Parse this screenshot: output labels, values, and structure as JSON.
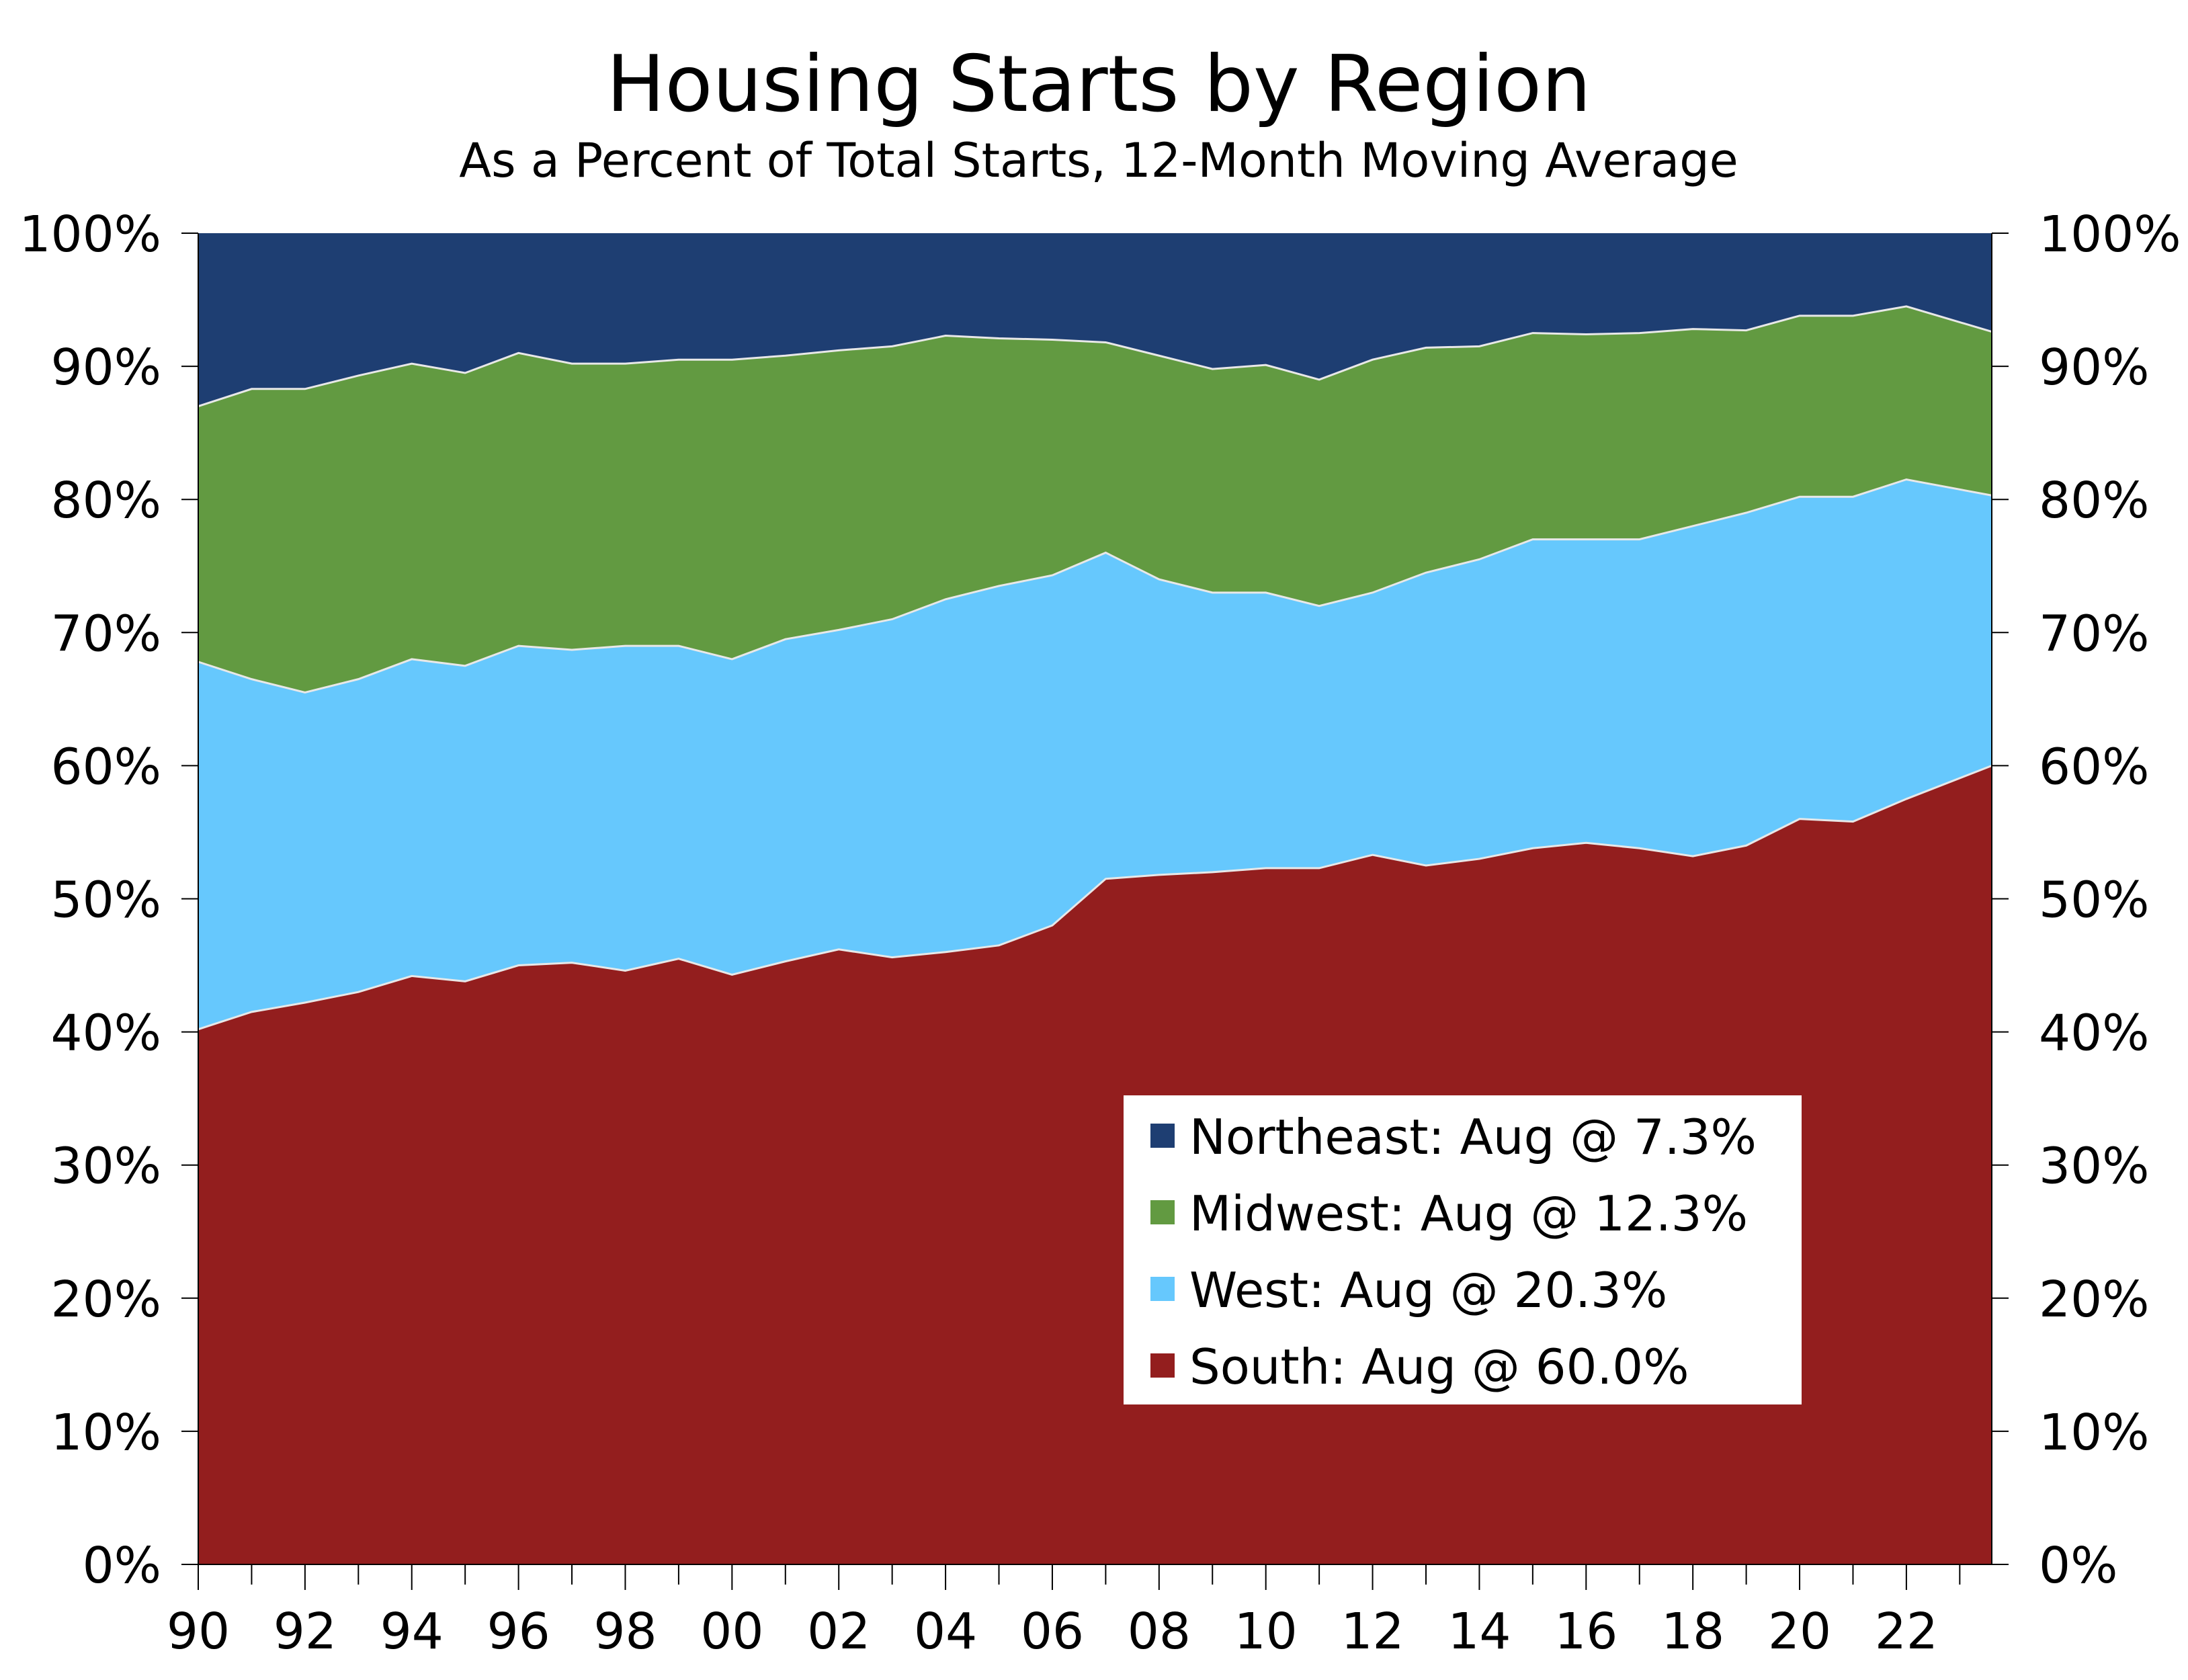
{
  "chart_data": {
    "type": "area",
    "stacked": true,
    "title": "Housing Starts by Region",
    "subtitle": "As a Percent of Total Starts, 12-Month Moving Average",
    "xlabel": "",
    "ylabel": "",
    "ylim": [
      0,
      100
    ],
    "xlim": [
      1990,
      2023.6
    ],
    "y_ticks": [
      "0%",
      "10%",
      "20%",
      "30%",
      "40%",
      "50%",
      "60%",
      "70%",
      "80%",
      "90%",
      "100%"
    ],
    "x_ticks": [
      "90",
      "92",
      "94",
      "96",
      "98",
      "00",
      "02",
      "04",
      "06",
      "08",
      "10",
      "12",
      "14",
      "16",
      "18",
      "20",
      "22"
    ],
    "x": [
      1990,
      1991,
      1992,
      1993,
      1994,
      1995,
      1996,
      1997,
      1998,
      1999,
      2000,
      2001,
      2002,
      2003,
      2004,
      2005,
      2006,
      2007,
      2008,
      2009,
      2010,
      2011,
      2012,
      2013,
      2014,
      2015,
      2016,
      2017,
      2018,
      2019,
      2020,
      2021,
      2022,
      2023.6
    ],
    "series": [
      {
        "name": "South",
        "legend": "South: Aug @ 60.0%",
        "color": "#931e1e",
        "values": [
          40.2,
          41.5,
          42.2,
          43,
          44.2,
          43.8,
          45,
          45.2,
          44.6,
          45.5,
          44.3,
          45.3,
          46.2,
          45.6,
          46,
          46.5,
          48,
          51.5,
          51.8,
          52,
          52.3,
          52.3,
          53.3,
          52.5,
          53,
          53.8,
          54.2,
          53.8,
          53.2,
          54,
          56,
          55.8,
          57.5,
          60.0
        ]
      },
      {
        "name": "West",
        "legend": "West: Aug @ 20.3%",
        "color": "#66c8fd",
        "values": [
          27.6,
          25.0,
          23.3,
          23.5,
          23.8,
          23.7,
          24.0,
          23.5,
          24.4,
          23.5,
          23.7,
          24.2,
          24.0,
          25.4,
          26.5,
          27.0,
          26.3,
          24.5,
          22.2,
          21.0,
          20.7,
          19.7,
          19.7,
          22.0,
          22.5,
          23.2,
          22.8,
          23.2,
          24.8,
          25.0,
          24.2,
          24.4,
          24.0,
          20.3
        ]
      },
      {
        "name": "Midwest",
        "legend": "Midwest: Aug @ 12.3%",
        "color": "#629a41",
        "values": [
          19.2,
          21.8,
          22.8,
          22.8,
          22.2,
          22.0,
          22.0,
          21.5,
          21.2,
          21.5,
          22.5,
          21.3,
          21.0,
          20.5,
          19.8,
          18.6,
          17.7,
          15.8,
          16.8,
          16.8,
          17.1,
          17.0,
          17.5,
          16.9,
          16.0,
          15.5,
          15.4,
          15.5,
          14.8,
          13.7,
          13.6,
          13.6,
          13.0,
          12.3
        ]
      },
      {
        "name": "Northeast",
        "legend": "Northeast: Aug @ 7.3%",
        "color": "#1e3e72",
        "values": [
          13.0,
          11.7,
          11.7,
          10.7,
          9.8,
          10.5,
          9.0,
          9.8,
          9.8,
          9.5,
          9.5,
          9.2,
          8.8,
          8.5,
          7.7,
          7.9,
          8.0,
          8.2,
          9.2,
          10.2,
          9.9,
          11.0,
          9.5,
          8.6,
          8.5,
          7.5,
          7.6,
          7.5,
          7.2,
          7.3,
          6.2,
          6.2,
          5.5,
          7.3
        ]
      }
    ],
    "legend_placement": "lower-right inside plot",
    "legend_order": [
      "Northeast",
      "Midwest",
      "West",
      "South"
    ],
    "grid": false
  }
}
